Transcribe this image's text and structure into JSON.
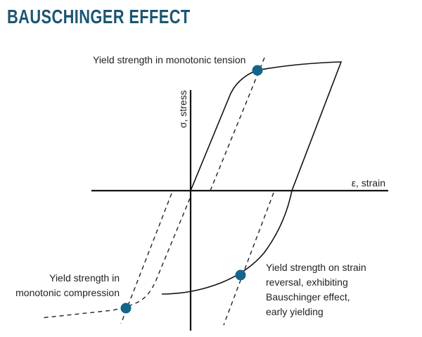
{
  "title": "BAUSCHINGER EFFECT",
  "axes": {
    "y_label": "σ, stress",
    "x_label": "ε, strain"
  },
  "annotations": {
    "tension": "Yield strength in monotonic tension",
    "compression": [
      "Yield strength in",
      "monotonic compression"
    ],
    "reversal": [
      "Yield strength on strain",
      "reversal, exhibiting",
      "Bauschinger effect,",
      "early yielding"
    ]
  },
  "colors": {
    "title": "#1b5672",
    "marker": "#15648a",
    "line": "#111111"
  }
}
